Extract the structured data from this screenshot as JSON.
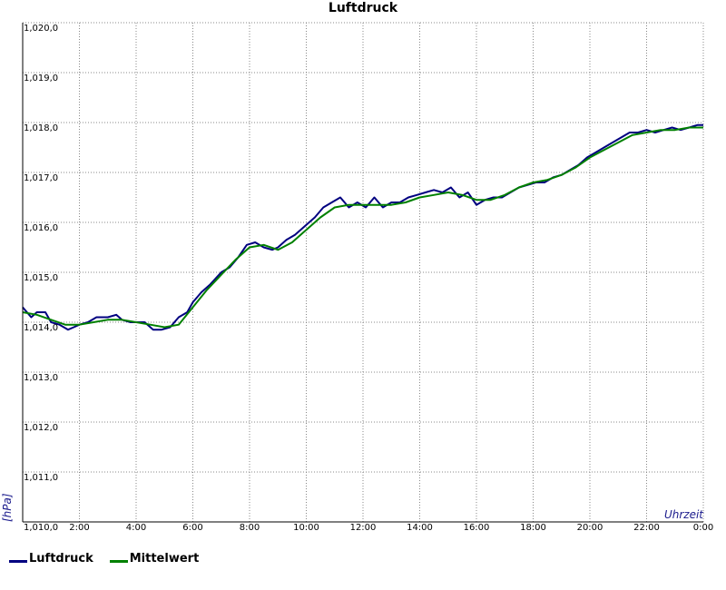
{
  "chart_data": {
    "type": "line",
    "title": "Luftdruck",
    "xlabel": "Uhrzeit",
    "ylabel": "[hPa]",
    "xlim": [
      0,
      24
    ],
    "ylim": [
      1010.0,
      1020.0
    ],
    "x_tick_values": [
      2,
      4,
      6,
      8,
      10,
      12,
      14,
      16,
      18,
      20,
      22,
      24
    ],
    "x_tick_labels": [
      "2:00",
      "4:00",
      "6:00",
      "8:00",
      "10:00",
      "12:00",
      "14:00",
      "16:00",
      "18:00",
      "20:00",
      "22:00",
      "0:00"
    ],
    "y_tick_values": [
      1010,
      1011,
      1012,
      1013,
      1014,
      1015,
      1016,
      1017,
      1018,
      1019,
      1020
    ],
    "y_tick_labels": [
      "1,010,0",
      "1,011,0",
      "1,012,0",
      "1,013,0",
      "1,014,0",
      "1,015,0",
      "1,016,0",
      "1,017,0",
      "1,018,0",
      "1,019,0",
      "1,020,0"
    ],
    "grid": true,
    "legend_position": "bottom-left",
    "series": [
      {
        "name": "Luftdruck",
        "color": "#000080",
        "x": [
          0.0,
          0.3,
          0.5,
          0.8,
          1.0,
          1.3,
          1.6,
          1.8,
          2.0,
          2.3,
          2.6,
          3.0,
          3.3,
          3.5,
          3.8,
          4.0,
          4.3,
          4.6,
          4.9,
          5.2,
          5.5,
          5.8,
          6.0,
          6.3,
          6.6,
          7.0,
          7.3,
          7.6,
          7.9,
          8.2,
          8.5,
          8.8,
          9.0,
          9.3,
          9.6,
          10.0,
          10.3,
          10.6,
          10.9,
          11.2,
          11.5,
          11.8,
          12.1,
          12.4,
          12.7,
          13.0,
          13.3,
          13.6,
          13.9,
          14.2,
          14.5,
          14.8,
          15.1,
          15.4,
          15.7,
          16.0,
          16.3,
          16.6,
          16.9,
          17.2,
          17.5,
          17.8,
          18.1,
          18.4,
          18.7,
          19.0,
          19.3,
          19.6,
          19.9,
          20.2,
          20.5,
          20.8,
          21.1,
          21.4,
          21.7,
          22.0,
          22.3,
          22.6,
          22.9,
          23.2,
          23.5,
          23.8,
          24.0
        ],
        "values": [
          1014.3,
          1014.1,
          1014.2,
          1014.2,
          1014.0,
          1013.95,
          1013.85,
          1013.9,
          1013.95,
          1014.0,
          1014.1,
          1014.1,
          1014.15,
          1014.05,
          1014.0,
          1014.0,
          1014.0,
          1013.85,
          1013.85,
          1013.9,
          1014.1,
          1014.2,
          1014.4,
          1014.6,
          1014.75,
          1015.0,
          1015.1,
          1015.3,
          1015.55,
          1015.6,
          1015.5,
          1015.45,
          1015.5,
          1015.65,
          1015.75,
          1015.95,
          1016.1,
          1016.3,
          1016.4,
          1016.5,
          1016.3,
          1016.4,
          1016.3,
          1016.5,
          1016.3,
          1016.4,
          1016.4,
          1016.5,
          1016.55,
          1016.6,
          1016.65,
          1016.6,
          1016.7,
          1016.5,
          1016.6,
          1016.35,
          1016.45,
          1016.5,
          1016.5,
          1016.6,
          1016.7,
          1016.75,
          1016.8,
          1016.8,
          1016.9,
          1016.95,
          1017.05,
          1017.15,
          1017.3,
          1017.4,
          1017.5,
          1017.6,
          1017.7,
          1017.8,
          1017.8,
          1017.85,
          1017.8,
          1017.85,
          1017.9,
          1017.85,
          1017.9,
          1017.95,
          1017.95
        ]
      },
      {
        "name": "Mittelwert",
        "color": "#008000",
        "x": [
          0.0,
          0.5,
          1.0,
          1.5,
          2.0,
          2.5,
          3.0,
          3.5,
          4.0,
          4.5,
          5.0,
          5.5,
          6.0,
          6.5,
          7.0,
          7.5,
          8.0,
          8.5,
          9.0,
          9.5,
          10.0,
          10.5,
          11.0,
          11.5,
          12.0,
          12.5,
          13.0,
          13.5,
          14.0,
          14.5,
          15.0,
          15.5,
          16.0,
          16.5,
          17.0,
          17.5,
          18.0,
          18.5,
          19.0,
          19.5,
          20.0,
          20.5,
          21.0,
          21.5,
          22.0,
          22.5,
          23.0,
          23.5,
          24.0
        ],
        "values": [
          1014.2,
          1014.15,
          1014.05,
          1013.95,
          1013.95,
          1014.0,
          1014.05,
          1014.05,
          1014.0,
          1013.95,
          1013.9,
          1013.95,
          1014.3,
          1014.65,
          1014.95,
          1015.25,
          1015.5,
          1015.55,
          1015.45,
          1015.6,
          1015.85,
          1016.1,
          1016.3,
          1016.35,
          1016.35,
          1016.35,
          1016.35,
          1016.4,
          1016.5,
          1016.55,
          1016.6,
          1016.55,
          1016.45,
          1016.45,
          1016.55,
          1016.7,
          1016.8,
          1016.85,
          1016.95,
          1017.1,
          1017.3,
          1017.45,
          1017.6,
          1017.75,
          1017.8,
          1017.85,
          1017.85,
          1017.9,
          1017.9
        ]
      }
    ]
  }
}
